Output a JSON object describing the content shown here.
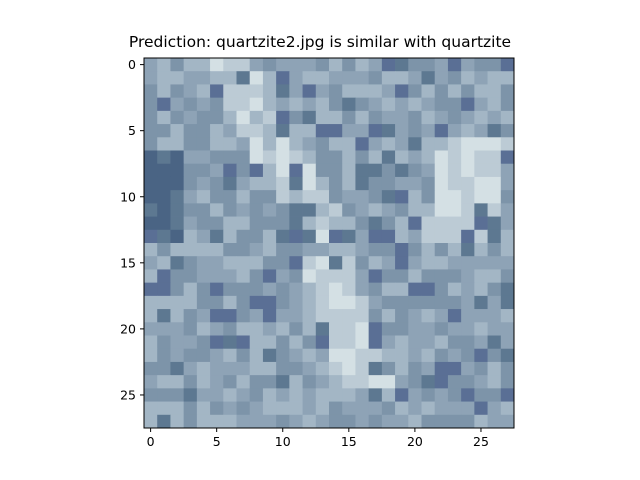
{
  "title": "Prediction: quartzite2.jpg is similar with quartzite",
  "image": {
    "rows": 28,
    "cols": 28,
    "description_palette": [
      "#5d7891",
      "#6e889e",
      "#7d94a9",
      "#8ea3b6",
      "#a3b6c5",
      "#bccbd5",
      "#d4e0e4",
      "#4a6484",
      "#5a6f95"
    ],
    "x_ticks": [
      "0",
      "5",
      "10",
      "15",
      "20",
      "25"
    ],
    "y_ticks": [
      "0",
      "5",
      "10",
      "15",
      "20",
      "25"
    ],
    "x_tick_values": [
      0,
      5,
      10,
      15,
      20,
      25
    ],
    "y_tick_values": [
      0,
      5,
      10,
      15,
      20,
      25
    ]
  }
}
